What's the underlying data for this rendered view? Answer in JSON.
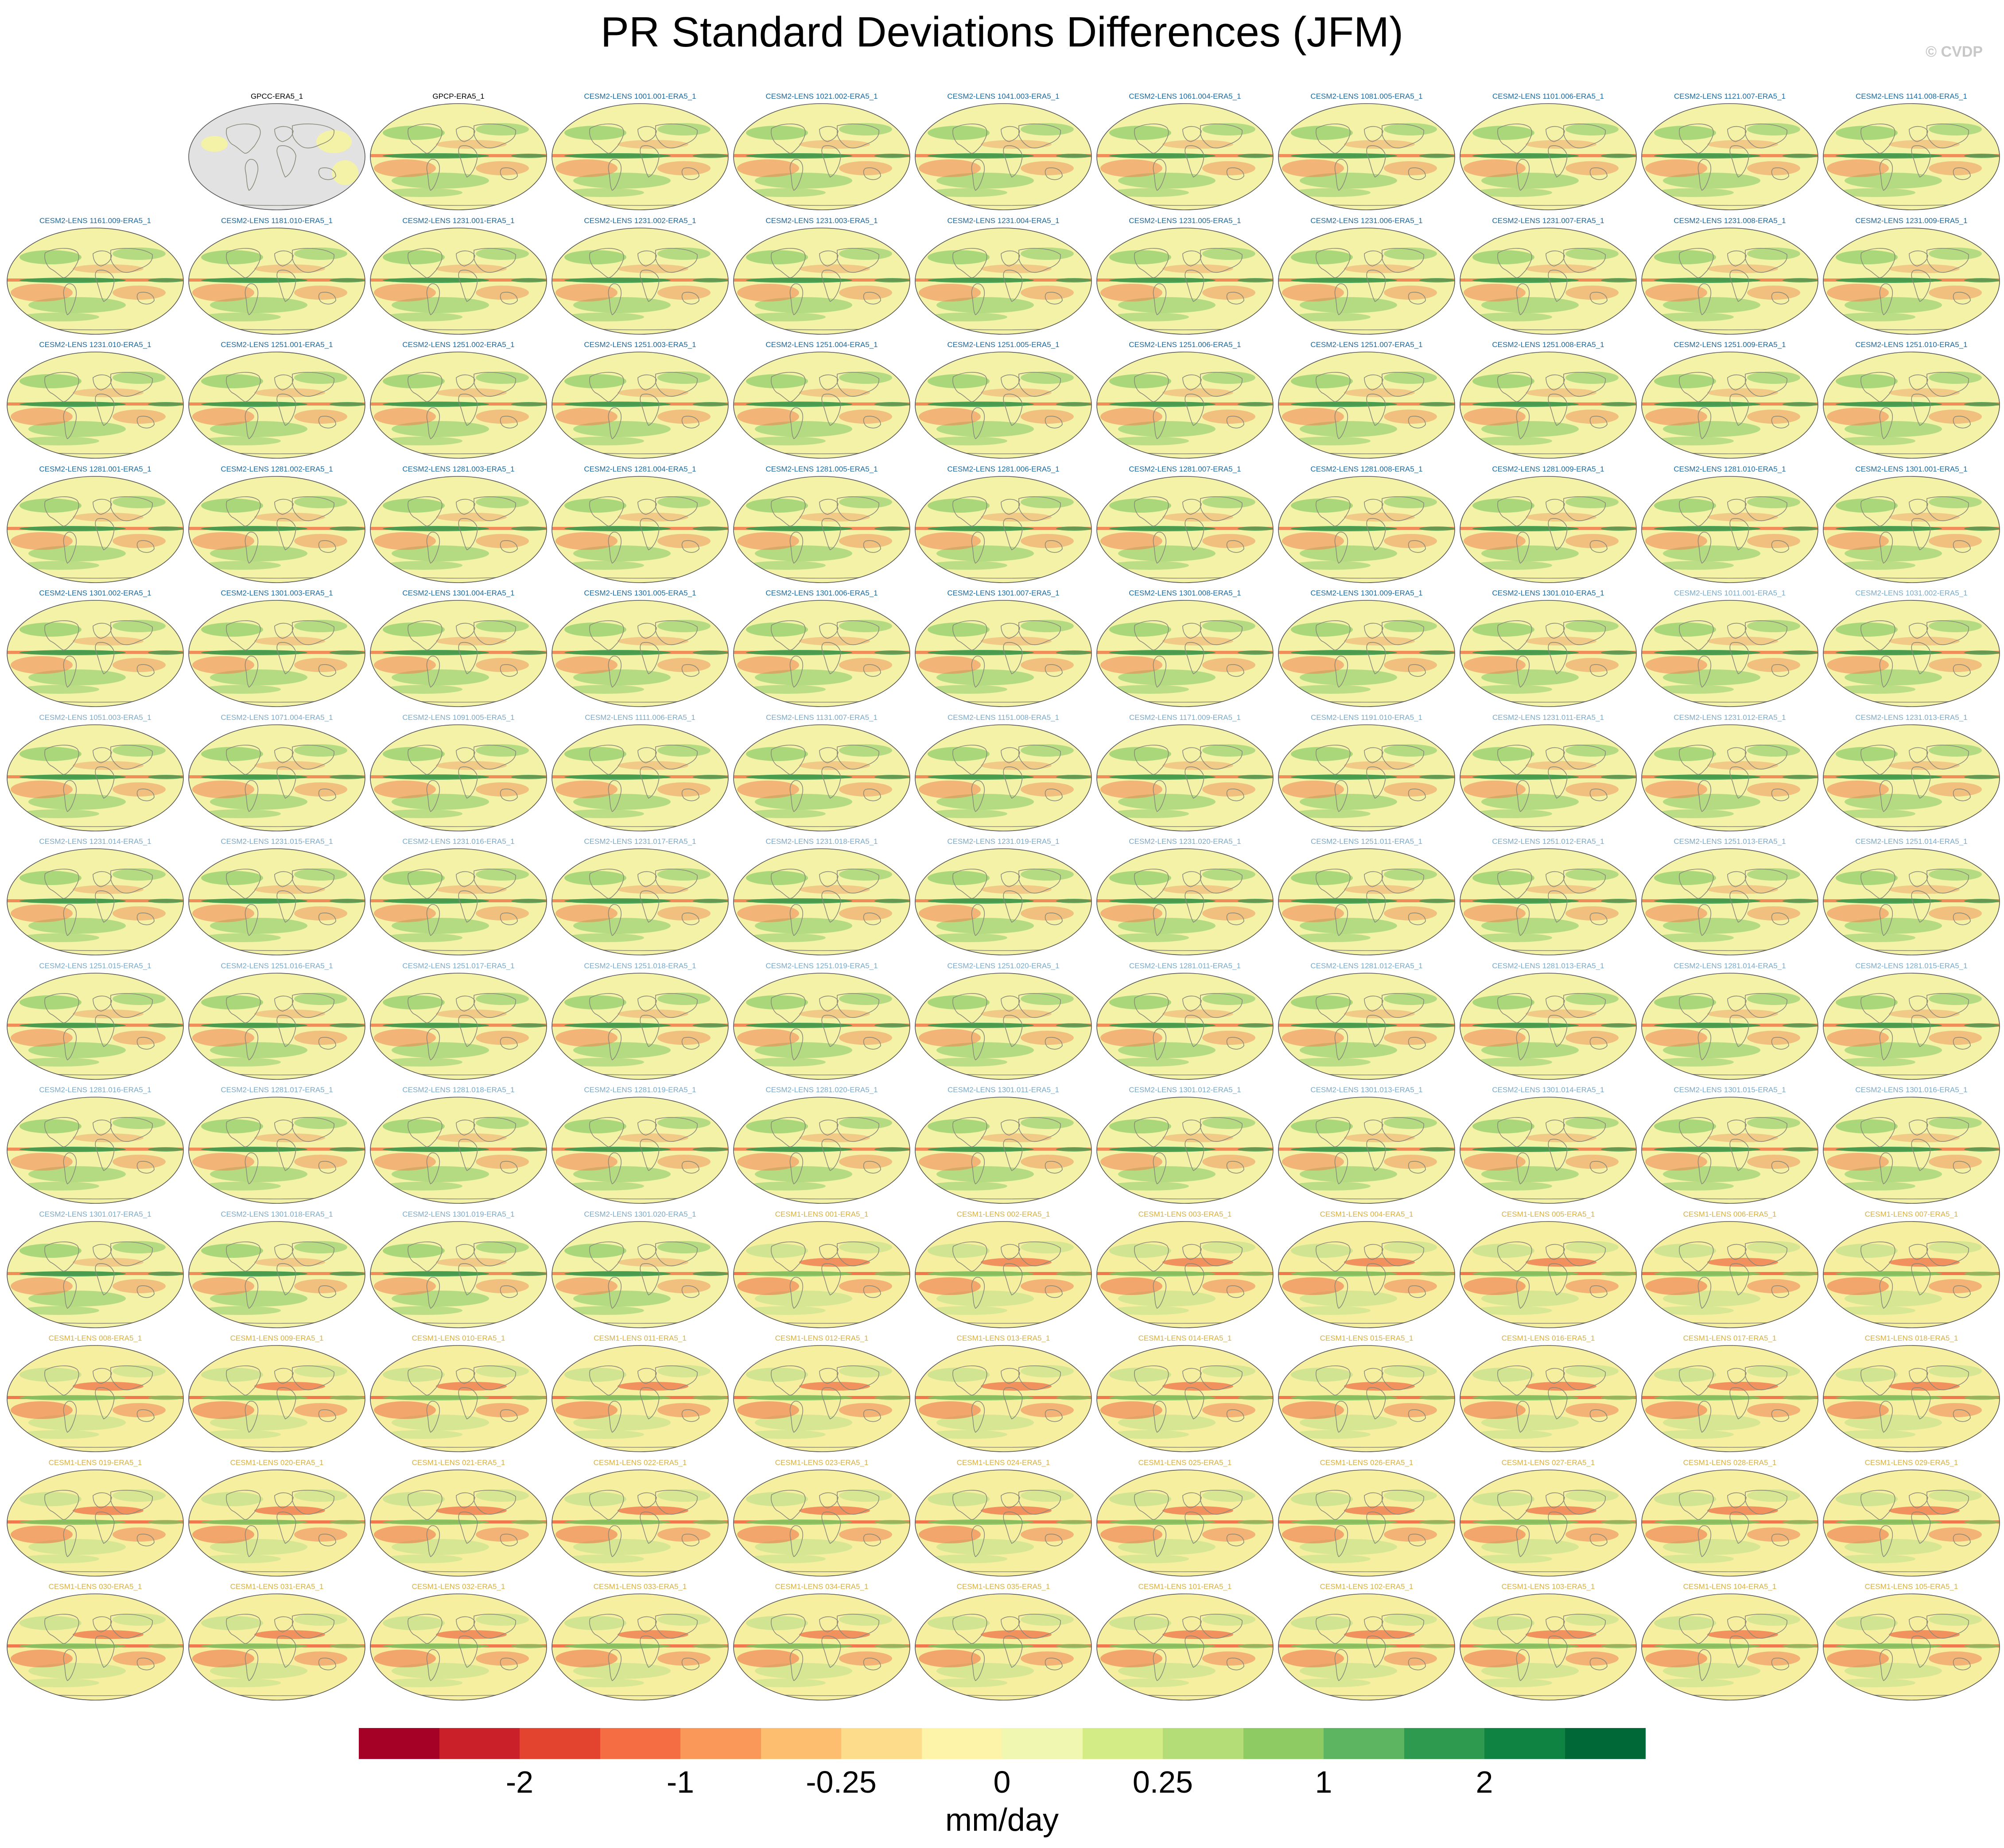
{
  "title": "PR Standard Deviations Differences (JFM)",
  "copyright": "© CVDP",
  "colors": {
    "obs_title": "#000000",
    "cesm2_title": "#1a6aa0",
    "cesm2_light_title": "#7aaaca",
    "cesm1_title": "#d8b040",
    "land_coastline": "#8a8a7a",
    "missing_gray": "#e2e2e2",
    "cesm2_ocean": "#f3f2a6",
    "cesm1_ocean": "#f7efa0"
  },
  "chart_data": {
    "type": "heatmap",
    "title": "PR Standard Deviations Differences (JFM)",
    "projection": "Robinson (global maps)",
    "panels": [
      {
        "label": "",
        "model": "blank"
      },
      {
        "label": "GPCC-ERA5_1",
        "model": "gpcc"
      },
      {
        "label": "GPCP-ERA5_1",
        "model": "gpcp"
      },
      {
        "label": "CESM2-LENS 1001.001-ERA5_1",
        "model": "cesm2"
      },
      {
        "label": "CESM2-LENS 1021.002-ERA5_1",
        "model": "cesm2"
      },
      {
        "label": "CESM2-LENS 1041.003-ERA5_1",
        "model": "cesm2"
      },
      {
        "label": "CESM2-LENS 1061.004-ERA5_1",
        "model": "cesm2"
      },
      {
        "label": "CESM2-LENS 1081.005-ERA5_1",
        "model": "cesm2"
      },
      {
        "label": "CESM2-LENS 1101.006-ERA5_1",
        "model": "cesm2"
      },
      {
        "label": "CESM2-LENS 1121.007-ERA5_1",
        "model": "cesm2"
      },
      {
        "label": "CESM2-LENS 1141.008-ERA5_1",
        "model": "cesm2"
      },
      {
        "label": "CESM2-LENS 1161.009-ERA5_1",
        "model": "cesm2"
      },
      {
        "label": "CESM2-LENS 1181.010-ERA5_1",
        "model": "cesm2"
      },
      {
        "label": "CESM2-LENS 1231.001-ERA5_1",
        "model": "cesm2"
      },
      {
        "label": "CESM2-LENS 1231.002-ERA5_1",
        "model": "cesm2"
      },
      {
        "label": "CESM2-LENS 1231.003-ERA5_1",
        "model": "cesm2"
      },
      {
        "label": "CESM2-LENS 1231.004-ERA5_1",
        "model": "cesm2"
      },
      {
        "label": "CESM2-LENS 1231.005-ERA5_1",
        "model": "cesm2"
      },
      {
        "label": "CESM2-LENS 1231.006-ERA5_1",
        "model": "cesm2"
      },
      {
        "label": "CESM2-LENS 1231.007-ERA5_1",
        "model": "cesm2"
      },
      {
        "label": "CESM2-LENS 1231.008-ERA5_1",
        "model": "cesm2"
      },
      {
        "label": "CESM2-LENS 1231.009-ERA5_1",
        "model": "cesm2"
      },
      {
        "label": "CESM2-LENS 1231.010-ERA5_1",
        "model": "cesm2"
      },
      {
        "label": "CESM2-LENS 1251.001-ERA5_1",
        "model": "cesm2"
      },
      {
        "label": "CESM2-LENS 1251.002-ERA5_1",
        "model": "cesm2"
      },
      {
        "label": "CESM2-LENS 1251.003-ERA5_1",
        "model": "cesm2"
      },
      {
        "label": "CESM2-LENS 1251.004-ERA5_1",
        "model": "cesm2"
      },
      {
        "label": "CESM2-LENS 1251.005-ERA5_1",
        "model": "cesm2"
      },
      {
        "label": "CESM2-LENS 1251.006-ERA5_1",
        "model": "cesm2"
      },
      {
        "label": "CESM2-LENS 1251.007-ERA5_1",
        "model": "cesm2"
      },
      {
        "label": "CESM2-LENS 1251.008-ERA5_1",
        "model": "cesm2"
      },
      {
        "label": "CESM2-LENS 1251.009-ERA5_1",
        "model": "cesm2"
      },
      {
        "label": "CESM2-LENS 1251.010-ERA5_1",
        "model": "cesm2"
      },
      {
        "label": "CESM2-LENS 1281.001-ERA5_1",
        "model": "cesm2"
      },
      {
        "label": "CESM2-LENS 1281.002-ERA5_1",
        "model": "cesm2"
      },
      {
        "label": "CESM2-LENS 1281.003-ERA5_1",
        "model": "cesm2"
      },
      {
        "label": "CESM2-LENS 1281.004-ERA5_1",
        "model": "cesm2"
      },
      {
        "label": "CESM2-LENS 1281.005-ERA5_1",
        "model": "cesm2"
      },
      {
        "label": "CESM2-LENS 1281.006-ERA5_1",
        "model": "cesm2"
      },
      {
        "label": "CESM2-LENS 1281.007-ERA5_1",
        "model": "cesm2"
      },
      {
        "label": "CESM2-LENS 1281.008-ERA5_1",
        "model": "cesm2"
      },
      {
        "label": "CESM2-LENS 1281.009-ERA5_1",
        "model": "cesm2"
      },
      {
        "label": "CESM2-LENS 1281.010-ERA5_1",
        "model": "cesm2"
      },
      {
        "label": "CESM2-LENS 1301.001-ERA5_1",
        "model": "cesm2"
      },
      {
        "label": "CESM2-LENS 1301.002-ERA5_1",
        "model": "cesm2"
      },
      {
        "label": "CESM2-LENS 1301.003-ERA5_1",
        "model": "cesm2"
      },
      {
        "label": "CESM2-LENS 1301.004-ERA5_1",
        "model": "cesm2"
      },
      {
        "label": "CESM2-LENS 1301.005-ERA5_1",
        "model": "cesm2"
      },
      {
        "label": "CESM2-LENS 1301.006-ERA5_1",
        "model": "cesm2"
      },
      {
        "label": "CESM2-LENS 1301.007-ERA5_1",
        "model": "cesm2"
      },
      {
        "label": "CESM2-LENS 1301.008-ERA5_1",
        "model": "cesm2"
      },
      {
        "label": "CESM2-LENS 1301.009-ERA5_1",
        "model": "cesm2"
      },
      {
        "label": "CESM2-LENS 1301.010-ERA5_1",
        "model": "cesm2"
      },
      {
        "label": "CESM2-LENS 1011.001-ERA5_1",
        "model": "cesm2light"
      },
      {
        "label": "CESM2-LENS 1031.002-ERA5_1",
        "model": "cesm2light"
      },
      {
        "label": "CESM2-LENS 1051.003-ERA5_1",
        "model": "cesm2light"
      },
      {
        "label": "CESM2-LENS 1071.004-ERA5_1",
        "model": "cesm2light"
      },
      {
        "label": "CESM2-LENS 1091.005-ERA5_1",
        "model": "cesm2light"
      },
      {
        "label": "CESM2-LENS 1111.006-ERA5_1",
        "model": "cesm2light"
      },
      {
        "label": "CESM2-LENS 1131.007-ERA5_1",
        "model": "cesm2light"
      },
      {
        "label": "CESM2-LENS 1151.008-ERA5_1",
        "model": "cesm2light"
      },
      {
        "label": "CESM2-LENS 1171.009-ERA5_1",
        "model": "cesm2light"
      },
      {
        "label": "CESM2-LENS 1191.010-ERA5_1",
        "model": "cesm2light"
      },
      {
        "label": "CESM2-LENS 1231.011-ERA5_1",
        "model": "cesm2light"
      },
      {
        "label": "CESM2-LENS 1231.012-ERA5_1",
        "model": "cesm2light"
      },
      {
        "label": "CESM2-LENS 1231.013-ERA5_1",
        "model": "cesm2light"
      },
      {
        "label": "CESM2-LENS 1231.014-ERA5_1",
        "model": "cesm2light"
      },
      {
        "label": "CESM2-LENS 1231.015-ERA5_1",
        "model": "cesm2light"
      },
      {
        "label": "CESM2-LENS 1231.016-ERA5_1",
        "model": "cesm2light"
      },
      {
        "label": "CESM2-LENS 1231.017-ERA5_1",
        "model": "cesm2light"
      },
      {
        "label": "CESM2-LENS 1231.018-ERA5_1",
        "model": "cesm2light"
      },
      {
        "label": "CESM2-LENS 1231.019-ERA5_1",
        "model": "cesm2light"
      },
      {
        "label": "CESM2-LENS 1231.020-ERA5_1",
        "model": "cesm2light"
      },
      {
        "label": "CESM2-LENS 1251.011-ERA5_1",
        "model": "cesm2light"
      },
      {
        "label": "CESM2-LENS 1251.012-ERA5_1",
        "model": "cesm2light"
      },
      {
        "label": "CESM2-LENS 1251.013-ERA5_1",
        "model": "cesm2light"
      },
      {
        "label": "CESM2-LENS 1251.014-ERA5_1",
        "model": "cesm2light"
      },
      {
        "label": "CESM2-LENS 1251.015-ERA5_1",
        "model": "cesm2light"
      },
      {
        "label": "CESM2-LENS 1251.016-ERA5_1",
        "model": "cesm2light"
      },
      {
        "label": "CESM2-LENS 1251.017-ERA5_1",
        "model": "cesm2light"
      },
      {
        "label": "CESM2-LENS 1251.018-ERA5_1",
        "model": "cesm2light"
      },
      {
        "label": "CESM2-LENS 1251.019-ERA5_1",
        "model": "cesm2light"
      },
      {
        "label": "CESM2-LENS 1251.020-ERA5_1",
        "model": "cesm2light"
      },
      {
        "label": "CESM2-LENS 1281.011-ERA5_1",
        "model": "cesm2light"
      },
      {
        "label": "CESM2-LENS 1281.012-ERA5_1",
        "model": "cesm2light"
      },
      {
        "label": "CESM2-LENS 1281.013-ERA5_1",
        "model": "cesm2light"
      },
      {
        "label": "CESM2-LENS 1281.014-ERA5_1",
        "model": "cesm2light"
      },
      {
        "label": "CESM2-LENS 1281.015-ERA5_1",
        "model": "cesm2light"
      },
      {
        "label": "CESM2-LENS 1281.016-ERA5_1",
        "model": "cesm2light"
      },
      {
        "label": "CESM2-LENS 1281.017-ERA5_1",
        "model": "cesm2light"
      },
      {
        "label": "CESM2-LENS 1281.018-ERA5_1",
        "model": "cesm2light"
      },
      {
        "label": "CESM2-LENS 1281.019-ERA5_1",
        "model": "cesm2light"
      },
      {
        "label": "CESM2-LENS 1281.020-ERA5_1",
        "model": "cesm2light"
      },
      {
        "label": "CESM2-LENS 1301.011-ERA5_1",
        "model": "cesm2light"
      },
      {
        "label": "CESM2-LENS 1301.012-ERA5_1",
        "model": "cesm2light"
      },
      {
        "label": "CESM2-LENS 1301.013-ERA5_1",
        "model": "cesm2light"
      },
      {
        "label": "CESM2-LENS 1301.014-ERA5_1",
        "model": "cesm2light"
      },
      {
        "label": "CESM2-LENS 1301.015-ERA5_1",
        "model": "cesm2light"
      },
      {
        "label": "CESM2-LENS 1301.016-ERA5_1",
        "model": "cesm2light"
      },
      {
        "label": "CESM2-LENS 1301.017-ERA5_1",
        "model": "cesm2light"
      },
      {
        "label": "CESM2-LENS 1301.018-ERA5_1",
        "model": "cesm2light"
      },
      {
        "label": "CESM2-LENS 1301.019-ERA5_1",
        "model": "cesm2light"
      },
      {
        "label": "CESM2-LENS 1301.020-ERA5_1",
        "model": "cesm2light"
      },
      {
        "label": "CESM1-LENS 001-ERA5_1",
        "model": "cesm1"
      },
      {
        "label": "CESM1-LENS 002-ERA5_1",
        "model": "cesm1"
      },
      {
        "label": "CESM1-LENS 003-ERA5_1",
        "model": "cesm1"
      },
      {
        "label": "CESM1-LENS 004-ERA5_1",
        "model": "cesm1"
      },
      {
        "label": "CESM1-LENS 005-ERA5_1",
        "model": "cesm1"
      },
      {
        "label": "CESM1-LENS 006-ERA5_1",
        "model": "cesm1"
      },
      {
        "label": "CESM1-LENS 007-ERA5_1",
        "model": "cesm1"
      },
      {
        "label": "CESM1-LENS 008-ERA5_1",
        "model": "cesm1"
      },
      {
        "label": "CESM1-LENS 009-ERA5_1",
        "model": "cesm1"
      },
      {
        "label": "CESM1-LENS 010-ERA5_1",
        "model": "cesm1"
      },
      {
        "label": "CESM1-LENS 011-ERA5_1",
        "model": "cesm1"
      },
      {
        "label": "CESM1-LENS 012-ERA5_1",
        "model": "cesm1"
      },
      {
        "label": "CESM1-LENS 013-ERA5_1",
        "model": "cesm1"
      },
      {
        "label": "CESM1-LENS 014-ERA5_1",
        "model": "cesm1"
      },
      {
        "label": "CESM1-LENS 015-ERA5_1",
        "model": "cesm1"
      },
      {
        "label": "CESM1-LENS 016-ERA5_1",
        "model": "cesm1"
      },
      {
        "label": "CESM1-LENS 017-ERA5_1",
        "model": "cesm1"
      },
      {
        "label": "CESM1-LENS 018-ERA5_1",
        "model": "cesm1"
      },
      {
        "label": "CESM1-LENS 019-ERA5_1",
        "model": "cesm1"
      },
      {
        "label": "CESM1-LENS 020-ERA5_1",
        "model": "cesm1"
      },
      {
        "label": "CESM1-LENS 021-ERA5_1",
        "model": "cesm1"
      },
      {
        "label": "CESM1-LENS 022-ERA5_1",
        "model": "cesm1"
      },
      {
        "label": "CESM1-LENS 023-ERA5_1",
        "model": "cesm1"
      },
      {
        "label": "CESM1-LENS 024-ERA5_1",
        "model": "cesm1"
      },
      {
        "label": "CESM1-LENS 025-ERA5_1",
        "model": "cesm1"
      },
      {
        "label": "CESM1-LENS 026-ERA5_1",
        "model": "cesm1"
      },
      {
        "label": "CESM1-LENS 027-ERA5_1",
        "model": "cesm1"
      },
      {
        "label": "CESM1-LENS 028-ERA5_1",
        "model": "cesm1"
      },
      {
        "label": "CESM1-LENS 029-ERA5_1",
        "model": "cesm1"
      },
      {
        "label": "CESM1-LENS 030-ERA5_1",
        "model": "cesm1"
      },
      {
        "label": "CESM1-LENS 031-ERA5_1",
        "model": "cesm1"
      },
      {
        "label": "CESM1-LENS 032-ERA5_1",
        "model": "cesm1"
      },
      {
        "label": "CESM1-LENS 033-ERA5_1",
        "model": "cesm1"
      },
      {
        "label": "CESM1-LENS 034-ERA5_1",
        "model": "cesm1"
      },
      {
        "label": "CESM1-LENS 035-ERA5_1",
        "model": "cesm1"
      },
      {
        "label": "CESM1-LENS 101-ERA5_1",
        "model": "cesm1"
      },
      {
        "label": "CESM1-LENS 102-ERA5_1",
        "model": "cesm1"
      },
      {
        "label": "CESM1-LENS 103-ERA5_1",
        "model": "cesm1"
      },
      {
        "label": "CESM1-LENS 104-ERA5_1",
        "model": "cesm1"
      },
      {
        "label": "CESM1-LENS 105-ERA5_1",
        "model": "cesm1"
      }
    ],
    "colorbar": {
      "units": "mm/day",
      "tick_labels": [
        "-2",
        "-1",
        "-0.25",
        "0",
        "0.25",
        "1",
        "2"
      ],
      "tick_boundary_index": [
        2,
        4,
        6,
        8,
        10,
        12,
        14
      ],
      "colors": [
        "#a50026",
        "#c9202a",
        "#e2442f",
        "#f46d43",
        "#f99858",
        "#fdbf6f",
        "#fddc8c",
        "#fef4a9",
        "#f0f7b0",
        "#d4ec86",
        "#b4dd78",
        "#8ecb62",
        "#5db562",
        "#2d9a50",
        "#0f8442",
        "#006837"
      ]
    }
  }
}
